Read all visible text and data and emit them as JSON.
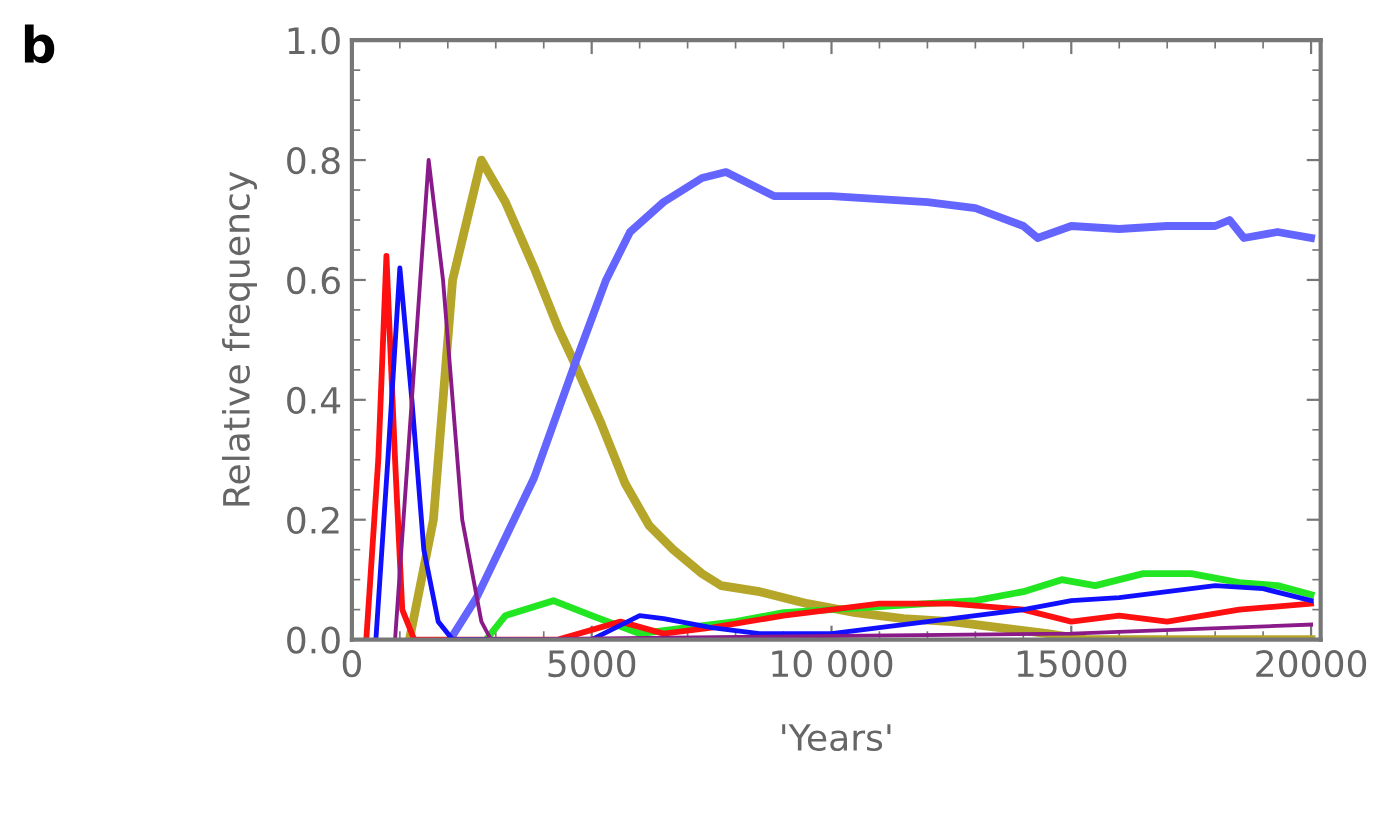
{
  "chart_data": {
    "type": "line",
    "xlabel": "'Years'",
    "ylabel": "Relative frequency",
    "annotations": [
      "b"
    ],
    "xlim": [
      0,
      20200
    ],
    "ylim": [
      0,
      1
    ],
    "xticks": [
      0,
      5000,
      {
        "value": 10000,
        "label": "10 000"
      },
      15000,
      20000
    ],
    "yticks": [
      {
        "value": 0,
        "label": "0.0"
      },
      {
        "value": 0.2,
        "label": "0.2"
      },
      {
        "value": 0.4,
        "label": "0.4"
      },
      {
        "value": 0.6,
        "label": "0.6"
      },
      {
        "value": 0.8,
        "label": "0.8"
      },
      {
        "value": 1,
        "label": "1.0"
      }
    ],
    "grid": false,
    "legend": false,
    "series": [
      {
        "color": "#b5a62a",
        "x": [
          1200,
          1700,
          2100,
          2700,
          3200,
          3800,
          4300,
          4650,
          5200,
          5700,
          6200,
          6700,
          7300,
          7700,
          8500,
          9500,
          10500,
          11500,
          12500,
          13500,
          14500,
          15300,
          20000
        ],
        "values": [
          0,
          0.2,
          0.6,
          0.8,
          0.73,
          0.62,
          0.52,
          0.46,
          0.36,
          0.26,
          0.19,
          0.15,
          0.11,
          0.09,
          0.08,
          0.06,
          0.045,
          0.035,
          0.03,
          0.02,
          0.01,
          0,
          0
        ]
      },
      {
        "color": "#6464ff",
        "x": [
          2050,
          2600,
          3200,
          3800,
          4650,
          5300,
          5800,
          6500,
          7300,
          7800,
          8300,
          8800,
          10000,
          11000,
          12000,
          13000,
          14000,
          14300,
          15000,
          16000,
          17000,
          18000,
          18300,
          18600,
          19300,
          20000
        ],
        "values": [
          0,
          0.07,
          0.17,
          0.27,
          0.46,
          0.6,
          0.68,
          0.73,
          0.77,
          0.78,
          0.76,
          0.74,
          0.74,
          0.735,
          0.73,
          0.72,
          0.69,
          0.67,
          0.69,
          0.685,
          0.69,
          0.69,
          0.7,
          0.67,
          0.68,
          0.67
        ]
      },
      {
        "color": "#22e622",
        "x": [
          2800,
          3200,
          4200,
          5000,
          6000,
          7000,
          8000,
          9000,
          10000,
          11000,
          12000,
          13000,
          14000,
          14800,
          15500,
          16500,
          17500,
          18500,
          19300,
          20000
        ],
        "values": [
          0,
          0.04,
          0.065,
          0.04,
          0.01,
          0.02,
          0.03,
          0.045,
          0.05,
          0.055,
          0.06,
          0.065,
          0.08,
          0.1,
          0.09,
          0.11,
          0.11,
          0.095,
          0.09,
          0.075
        ]
      },
      {
        "color": "#ff1010",
        "x": [
          300,
          550,
          720,
          900,
          1050,
          1300,
          4300,
          5600,
          6500,
          7500,
          9000,
          11000,
          12500,
          14000,
          15000,
          16000,
          17000,
          18500,
          20000
        ],
        "values": [
          0,
          0.3,
          0.64,
          0.3,
          0.05,
          0,
          0,
          0.03,
          0.01,
          0.02,
          0.04,
          0.06,
          0.06,
          0.05,
          0.03,
          0.04,
          0.03,
          0.05,
          0.06
        ]
      },
      {
        "color": "#1010ff",
        "x": [
          500,
          750,
          1000,
          1250,
          1500,
          1800,
          2100,
          5000,
          5500,
          6000,
          6500,
          7500,
          8500,
          10000,
          11000,
          12000,
          13000,
          14000,
          15000,
          16000,
          17000,
          18000,
          19000,
          20000
        ],
        "values": [
          0,
          0.3,
          0.62,
          0.4,
          0.15,
          0.03,
          0,
          0,
          0.02,
          0.04,
          0.035,
          0.02,
          0.01,
          0.01,
          0.02,
          0.03,
          0.04,
          0.05,
          0.065,
          0.07,
          0.08,
          0.09,
          0.085,
          0.065
        ]
      },
      {
        "color": "#8a1a8a",
        "x": [
          900,
          1250,
          1600,
          1900,
          2300,
          2700,
          2900,
          15000,
          20000
        ],
        "values": [
          0,
          0.4,
          0.8,
          0.6,
          0.2,
          0.03,
          0,
          0.01,
          0.025
        ]
      }
    ]
  }
}
